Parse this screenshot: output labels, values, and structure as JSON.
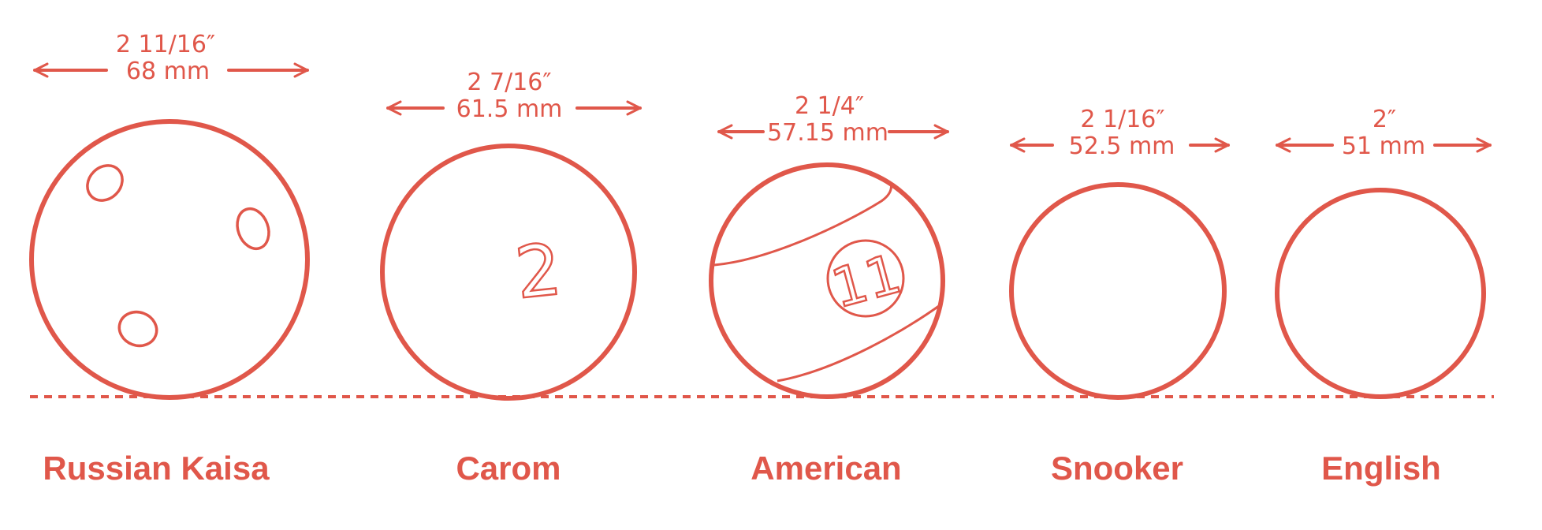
{
  "colors": {
    "accent": "#e0574a",
    "background": "#ffffff"
  },
  "balls": [
    {
      "name": "Russian Kaisa",
      "size_in": "2 11/16″",
      "size_mm": "68 mm",
      "decoration": "spots"
    },
    {
      "name": "Carom",
      "size_in": "2 7/16″",
      "size_mm": "61.5 mm",
      "decoration": "number",
      "number": "2"
    },
    {
      "name": "American",
      "size_in": "2 1/4″",
      "size_mm": "57.15 mm",
      "decoration": "stripe",
      "number": "11"
    },
    {
      "name": "Snooker",
      "size_in": "2 1/16″",
      "size_mm": "52.5 mm",
      "decoration": "plain"
    },
    {
      "name": "English",
      "size_in": "2″",
      "size_mm": "51 mm",
      "decoration": "plain"
    }
  ]
}
